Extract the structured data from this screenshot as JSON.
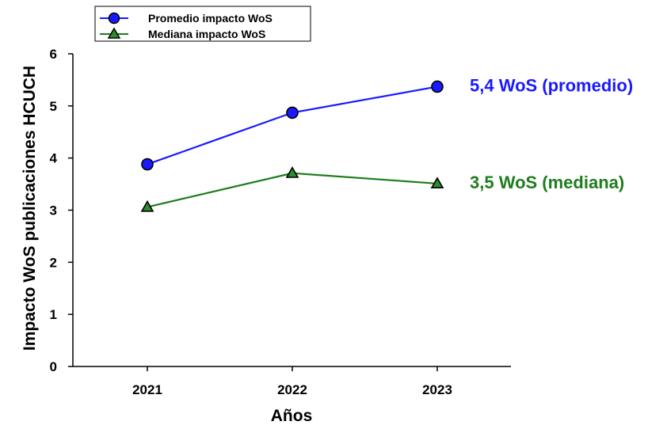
{
  "chart_data": {
    "type": "line",
    "x": [
      "2021",
      "2022",
      "2023"
    ],
    "series": [
      {
        "name": "Promedio impacto WoS",
        "values": [
          3.88,
          4.87,
          5.37
        ],
        "color": "#1a1aff",
        "marker": "circle"
      },
      {
        "name": "Mediana impacto WoS",
        "values": [
          3.06,
          3.71,
          3.51
        ],
        "color": "#1e7d1e",
        "marker": "triangle"
      }
    ],
    "xlabel": "Años",
    "ylabel": "Impacto WoS publicaciones HCUCH",
    "ylim": [
      0,
      6
    ],
    "yticks": [
      "0",
      "1",
      "2",
      "3",
      "4",
      "5",
      "6"
    ],
    "grid": false,
    "legend_position": "top-left",
    "annotations": [
      {
        "text": "5,4 WoS (promedio)",
        "series": 0,
        "color": "#1a1aff"
      },
      {
        "text": "3,5 WoS (mediana)",
        "series": 1,
        "color": "#1e7d1e"
      }
    ]
  }
}
